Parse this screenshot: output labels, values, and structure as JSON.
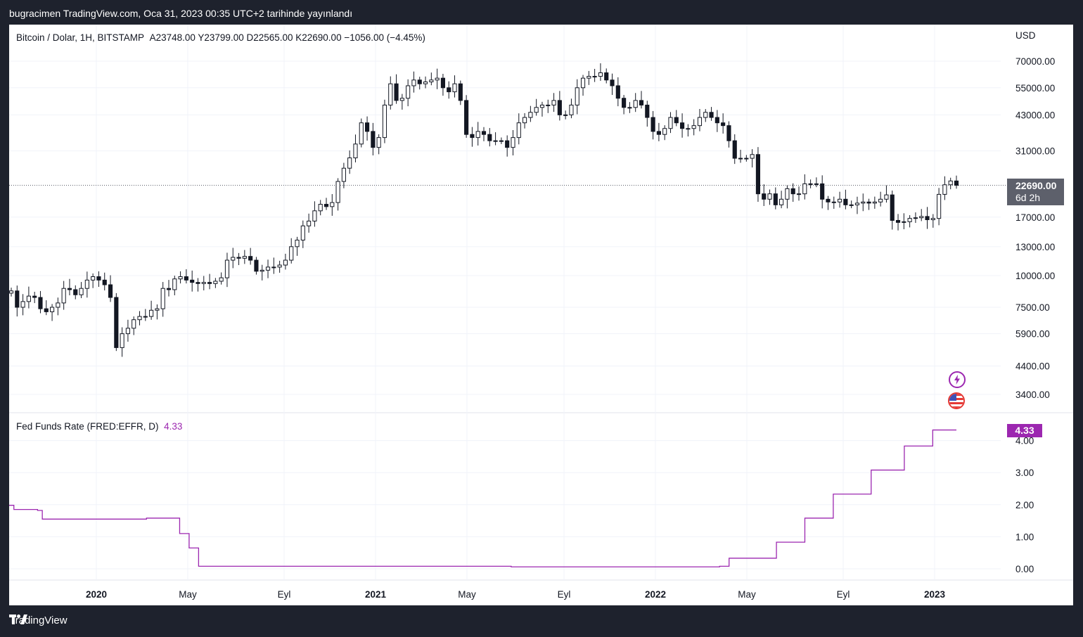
{
  "header": {
    "publish_text": "bugracimen TradingView.com, Oca 31, 2023 00:35 UTC+2 tarihinde yayınlandı"
  },
  "legend": {
    "symbol": "Bitcoin / Dolar, 1H, BITSTAMP",
    "ohlc": "A23748.00  Y23799.00  D22565.00  K22690.00  −1056.00 (−4.45%)",
    "rate_name": "Fed Funds Rate (FRED:EFFR, D)",
    "rate_value": "4.33"
  },
  "badges": {
    "last_price": "22690.00",
    "countdown": "6d 2h",
    "rate_last": "4.33"
  },
  "footer": {
    "brand": "TradingView"
  },
  "icons": [
    "flash-icon",
    "us-flag-icon",
    "tradingview-logo-icon"
  ],
  "colors": {
    "rate_line": "#9c27b0",
    "background": "#1e222d",
    "price_badge": "#5d606b"
  },
  "chart_data": [
    {
      "type": "candlestick",
      "title": "Bitcoin / Dolar, 1H, BITSTAMP",
      "currency_label": "USD",
      "y_scale": "log",
      "yticks": [
        3400,
        4400,
        5900,
        7500,
        10000,
        13000,
        17000,
        22690,
        31000,
        43000,
        55000,
        70000
      ],
      "ytick_labels": [
        "3400.00",
        "4400.00",
        "5900.00",
        "7500.00",
        "10000.00",
        "13000.00",
        "17000.00",
        "22690.00",
        "31000.00",
        "43000.00",
        "55000.00",
        "70000.00"
      ],
      "x_labels": [
        "2020",
        "May",
        "Eyl",
        "2021",
        "May",
        "Eyl",
        "2022",
        "May",
        "Eyl",
        "2023"
      ],
      "x_labels_bold": [
        "2020",
        "2021",
        "2022",
        "2023"
      ],
      "last_price": 22690,
      "close_series": [
        8700,
        7500,
        7900,
        8300,
        8200,
        7400,
        7200,
        7500,
        7800,
        8900,
        8800,
        8400,
        8900,
        9600,
        9900,
        9600,
        9200,
        8200,
        5200,
        5900,
        6200,
        6700,
        6900,
        6900,
        7300,
        7400,
        8900,
        8800,
        9700,
        9900,
        9600,
        9400,
        9300,
        9400,
        9300,
        9500,
        9800,
        11500,
        11800,
        11700,
        11900,
        11500,
        10400,
        10500,
        10800,
        10800,
        11000,
        11500,
        13000,
        13800,
        15700,
        16400,
        18000,
        19100,
        18700,
        19400,
        23500,
        26500,
        29100,
        33000,
        40000,
        37000,
        32000,
        35000,
        47000,
        57000,
        49000,
        50000,
        56000,
        59000,
        57000,
        58000,
        59000,
        60000,
        55000,
        53000,
        57000,
        49000,
        36000,
        35000,
        37000,
        36000,
        34000,
        34000,
        34000,
        32000,
        35000,
        40000,
        42000,
        44000,
        46000,
        47000,
        47000,
        49000,
        43000,
        43000,
        47000,
        55000,
        60000,
        61000,
        61000,
        63000,
        59000,
        56000,
        50000,
        46000,
        46000,
        49000,
        47000,
        42000,
        37000,
        36000,
        38000,
        42000,
        40000,
        38000,
        38000,
        39000,
        42000,
        44000,
        42000,
        40000,
        39000,
        34000,
        29000,
        29000,
        29000,
        30000,
        21000,
        20000,
        21000,
        19000,
        20000,
        22000,
        21000,
        21000,
        23000,
        23000,
        23000,
        20000,
        19500,
        19500,
        20000,
        19000,
        19000,
        19300,
        19500,
        19300,
        19500,
        20000,
        20800,
        16500,
        16200,
        16300,
        16800,
        16900,
        17100,
        16600,
        16800,
        20900,
        22800,
        23600,
        22690
      ]
    },
    {
      "type": "line",
      "title": "Fed Funds Rate (FRED:EFFR, D)",
      "yticks": [
        0,
        1,
        2,
        3,
        4
      ],
      "ytick_labels": [
        "0.00",
        "1.00",
        "2.00",
        "3.00",
        "4.00"
      ],
      "last_value": 4.33,
      "steps": [
        [
          0,
          1.98
        ],
        [
          0.005,
          1.85
        ],
        [
          0.03,
          1.82
        ],
        [
          0.035,
          1.55
        ],
        [
          0.145,
          1.58
        ],
        [
          0.18,
          1.1
        ],
        [
          0.19,
          0.65
        ],
        [
          0.2,
          0.08
        ],
        [
          0.5,
          0.08
        ],
        [
          0.52,
          0.08
        ],
        [
          0.53,
          0.06
        ],
        [
          0.75,
          0.08
        ],
        [
          0.76,
          0.33
        ],
        [
          0.81,
          0.83
        ],
        [
          0.84,
          1.58
        ],
        [
          0.87,
          2.33
        ],
        [
          0.91,
          3.08
        ],
        [
          0.945,
          3.83
        ],
        [
          0.975,
          4.33
        ],
        [
          1.0,
          4.33
        ]
      ]
    }
  ]
}
